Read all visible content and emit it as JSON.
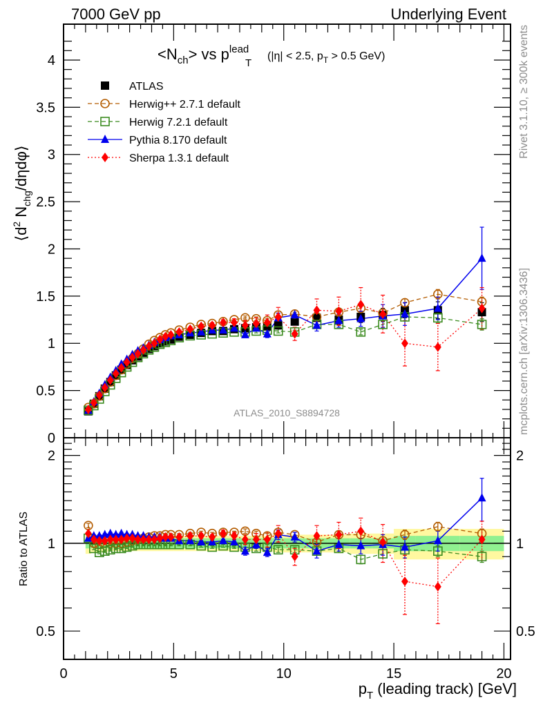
{
  "header": {
    "left": "7000 GeV pp",
    "right": "Underlying Event"
  },
  "side_labels": {
    "rivet": "Rivet 3.1.10, ≥ 300k events",
    "mcplots": "mcplots.cern.ch [arXiv:1306.3436]"
  },
  "chart_data": [
    {
      "type": "scatter",
      "panel": "main",
      "title": "<N_ch> vs p_T^lead (|η| < 2.5, p_T > 0.5 GeV)",
      "title_parts": {
        "n": "<N",
        "n_sub": "ch",
        "vs": "> vs p",
        "p_sup": "lead",
        "p_sub": "T",
        "cuts_a": "(|η| < 2.5, p",
        "cuts_sub": "T",
        "cuts_b": " > 0.5 GeV)"
      },
      "ylabel": "⟨d² N_chg/dηdφ⟩",
      "ylabel_parts": {
        "a": "⟨d",
        "sup": "2",
        "b": " N",
        "sub": "chg",
        "c": "/dηdφ⟩"
      },
      "xlabel": "p_T (leading track) [GeV]",
      "analysis_tag": "ATLAS_2010_S8894728",
      "xlim": [
        0,
        20.3
      ],
      "ylim": [
        0,
        4.38
      ],
      "yticks": [
        0,
        0.5,
        1,
        1.5,
        2,
        2.5,
        3,
        3.5,
        4
      ],
      "ytick_labels": [
        "0",
        "0.5",
        "1",
        "1.5",
        "2",
        "2.5",
        "3",
        "3.5",
        "4"
      ],
      "legend_position": "top-left",
      "x": [
        1.125,
        1.375,
        1.625,
        1.875,
        2.125,
        2.375,
        2.625,
        2.875,
        3.125,
        3.375,
        3.625,
        3.875,
        4.125,
        4.375,
        4.625,
        4.875,
        5.25,
        5.75,
        6.25,
        6.75,
        7.25,
        7.75,
        8.25,
        8.75,
        9.25,
        9.75,
        10.5,
        11.5,
        12.5,
        13.5,
        14.5,
        15.5,
        17.0,
        19.0
      ],
      "series": [
        {
          "name": "ATLAS",
          "color": "#000000",
          "marker": "square-filled",
          "line": "none",
          "values": [
            0.28,
            0.36,
            0.44,
            0.52,
            0.59,
            0.66,
            0.72,
            0.77,
            0.82,
            0.86,
            0.9,
            0.94,
            0.97,
            1.0,
            1.02,
            1.04,
            1.07,
            1.09,
            1.11,
            1.13,
            1.13,
            1.15,
            1.16,
            1.17,
            1.18,
            1.19,
            1.23,
            1.27,
            1.25,
            1.28,
            1.3,
            1.35,
            1.35,
            1.33
          ],
          "errors": [
            0.01,
            0.01,
            0.01,
            0.01,
            0.01,
            0.01,
            0.01,
            0.01,
            0.01,
            0.01,
            0.01,
            0.01,
            0.01,
            0.01,
            0.01,
            0.01,
            0.01,
            0.01,
            0.01,
            0.01,
            0.01,
            0.02,
            0.02,
            0.02,
            0.02,
            0.03,
            0.03,
            0.04,
            0.05,
            0.06,
            0.07,
            0.08,
            0.09,
            0.1
          ]
        },
        {
          "name": "Herwig++ 2.7.1 default",
          "color": "#b35c00",
          "marker": "circle-open",
          "line": "dashed",
          "values": [
            0.32,
            0.36,
            0.44,
            0.52,
            0.59,
            0.66,
            0.72,
            0.78,
            0.84,
            0.89,
            0.94,
            0.99,
            1.03,
            1.06,
            1.09,
            1.11,
            1.14,
            1.17,
            1.2,
            1.21,
            1.23,
            1.25,
            1.27,
            1.26,
            1.24,
            1.3,
            1.31,
            1.28,
            1.33,
            1.37,
            1.32,
            1.43,
            1.52,
            1.44
          ],
          "errors": [
            0.01,
            0.01,
            0.01,
            0.01,
            0.01,
            0.01,
            0.01,
            0.01,
            0.01,
            0.01,
            0.01,
            0.01,
            0.01,
            0.01,
            0.01,
            0.01,
            0.01,
            0.01,
            0.01,
            0.01,
            0.01,
            0.01,
            0.02,
            0.02,
            0.02,
            0.02,
            0.02,
            0.03,
            0.03,
            0.03,
            0.04,
            0.04,
            0.05,
            0.05
          ]
        },
        {
          "name": "Herwig 7.2.1 default",
          "color": "#3a8a1e",
          "marker": "square-open",
          "line": "dashed",
          "values": [
            0.29,
            0.34,
            0.41,
            0.49,
            0.56,
            0.63,
            0.69,
            0.75,
            0.8,
            0.85,
            0.89,
            0.93,
            0.96,
            0.99,
            1.01,
            1.03,
            1.06,
            1.08,
            1.09,
            1.1,
            1.11,
            1.12,
            1.12,
            1.13,
            1.14,
            1.13,
            1.12,
            1.2,
            1.2,
            1.12,
            1.2,
            1.28,
            1.27,
            1.2
          ],
          "errors": [
            0.01,
            0.01,
            0.01,
            0.01,
            0.01,
            0.01,
            0.01,
            0.01,
            0.01,
            0.01,
            0.01,
            0.01,
            0.01,
            0.01,
            0.01,
            0.01,
            0.01,
            0.01,
            0.01,
            0.01,
            0.01,
            0.01,
            0.02,
            0.02,
            0.02,
            0.02,
            0.02,
            0.03,
            0.03,
            0.03,
            0.04,
            0.04,
            0.05,
            0.06
          ]
        },
        {
          "name": "Pythia 8.170 default",
          "color": "#0000ee",
          "marker": "triangle-filled",
          "line": "solid",
          "values": [
            0.29,
            0.38,
            0.47,
            0.56,
            0.64,
            0.71,
            0.78,
            0.83,
            0.88,
            0.92,
            0.95,
            0.98,
            1.01,
            1.04,
            1.06,
            1.08,
            1.09,
            1.11,
            1.12,
            1.14,
            1.14,
            1.16,
            1.09,
            1.16,
            1.1,
            1.27,
            1.3,
            1.19,
            1.24,
            1.26,
            1.29,
            1.31,
            1.37,
            1.9
          ],
          "errors": [
            0.01,
            0.01,
            0.01,
            0.01,
            0.01,
            0.01,
            0.01,
            0.01,
            0.01,
            0.01,
            0.01,
            0.01,
            0.01,
            0.01,
            0.01,
            0.01,
            0.01,
            0.01,
            0.01,
            0.01,
            0.02,
            0.02,
            0.03,
            0.03,
            0.04,
            0.05,
            0.05,
            0.06,
            0.07,
            0.08,
            0.12,
            0.12,
            0.12,
            0.33
          ]
        },
        {
          "name": "Sherpa 1.3.1 default",
          "color": "#ff0000",
          "marker": "diamond-filled",
          "line": "dotted",
          "values": [
            0.3,
            0.37,
            0.45,
            0.53,
            0.61,
            0.68,
            0.74,
            0.8,
            0.85,
            0.89,
            0.93,
            0.97,
            1.0,
            1.04,
            1.07,
            1.09,
            1.12,
            1.15,
            1.18,
            1.19,
            1.22,
            1.22,
            1.19,
            1.21,
            1.22,
            1.28,
            1.1,
            1.35,
            1.34,
            1.41,
            1.31,
            1.0,
            0.96,
            1.37
          ],
          "errors": [
            0.01,
            0.01,
            0.01,
            0.01,
            0.01,
            0.01,
            0.01,
            0.01,
            0.01,
            0.01,
            0.01,
            0.01,
            0.01,
            0.01,
            0.01,
            0.01,
            0.02,
            0.02,
            0.02,
            0.03,
            0.03,
            0.04,
            0.05,
            0.06,
            0.08,
            0.1,
            0.07,
            0.12,
            0.15,
            0.18,
            0.2,
            0.24,
            0.25,
            0.22
          ]
        }
      ]
    },
    {
      "type": "scatter",
      "panel": "ratio",
      "ylabel": "Ratio to ATLAS",
      "xlabel": "p_T (leading track) [GeV]",
      "xlabel_parts": {
        "a": "p",
        "sub": "T",
        "b": " (leading track) [GeV]"
      },
      "yscale": "log",
      "ylim": [
        0.4,
        2.3
      ],
      "yticks": [
        0.5,
        1,
        2
      ],
      "ytick_labels": [
        "0.5",
        "1",
        "2"
      ],
      "xticks": [
        0,
        5,
        10,
        15,
        20
      ],
      "xtick_labels": [
        "0",
        "5",
        "10",
        "15",
        "20"
      ],
      "bands": {
        "stat_color": "#90f090",
        "total_color": "#fff8a0",
        "x_edges": [
          1.0,
          1.25,
          1.5,
          1.75,
          2.0,
          2.25,
          2.5,
          2.75,
          3.0,
          3.25,
          3.5,
          3.75,
          4.0,
          4.25,
          4.5,
          4.75,
          5.0,
          5.5,
          6.0,
          6.5,
          7.0,
          7.5,
          8.0,
          8.5,
          9.0,
          9.5,
          10.0,
          11.0,
          12.0,
          13.0,
          14.0,
          15.0,
          16.0,
          18.0,
          20.0
        ],
        "stat_halfwidth": [
          0.04,
          0.04,
          0.04,
          0.04,
          0.04,
          0.04,
          0.04,
          0.04,
          0.04,
          0.04,
          0.04,
          0.04,
          0.04,
          0.04,
          0.04,
          0.04,
          0.04,
          0.04,
          0.04,
          0.04,
          0.04,
          0.04,
          0.04,
          0.04,
          0.04,
          0.04,
          0.04,
          0.04,
          0.04,
          0.04,
          0.04,
          0.06,
          0.06,
          0.06
        ],
        "total_halfwidth": [
          0.08,
          0.07,
          0.07,
          0.07,
          0.06,
          0.06,
          0.06,
          0.06,
          0.06,
          0.06,
          0.06,
          0.06,
          0.06,
          0.06,
          0.06,
          0.06,
          0.06,
          0.06,
          0.06,
          0.06,
          0.06,
          0.06,
          0.06,
          0.06,
          0.06,
          0.07,
          0.07,
          0.07,
          0.07,
          0.08,
          0.08,
          0.12,
          0.12,
          0.12
        ]
      },
      "x": [
        1.125,
        1.375,
        1.625,
        1.875,
        2.125,
        2.375,
        2.625,
        2.875,
        3.125,
        3.375,
        3.625,
        3.875,
        4.125,
        4.375,
        4.625,
        4.875,
        5.25,
        5.75,
        6.25,
        6.75,
        7.25,
        7.75,
        8.25,
        8.75,
        9.25,
        9.75,
        10.5,
        11.5,
        12.5,
        13.5,
        14.5,
        15.5,
        17.0,
        19.0
      ],
      "series": [
        {
          "name": "Herwig++ 2.7.1 default",
          "color": "#b35c00",
          "marker": "circle-open",
          "line": "dashed",
          "values": [
            1.15,
            1.0,
            0.99,
            1.0,
            1.0,
            1.0,
            1.0,
            1.01,
            1.02,
            1.03,
            1.04,
            1.05,
            1.06,
            1.06,
            1.07,
            1.07,
            1.07,
            1.08,
            1.09,
            1.08,
            1.09,
            1.09,
            1.1,
            1.08,
            1.06,
            1.09,
            1.07,
            1.01,
            1.07,
            1.07,
            1.02,
            1.07,
            1.14,
            1.08
          ],
          "errors": [
            0.02,
            0.01,
            0.01,
            0.01,
            0.01,
            0.01,
            0.01,
            0.01,
            0.01,
            0.01,
            0.01,
            0.01,
            0.01,
            0.01,
            0.01,
            0.01,
            0.01,
            0.01,
            0.01,
            0.01,
            0.01,
            0.01,
            0.02,
            0.02,
            0.02,
            0.02,
            0.02,
            0.02,
            0.03,
            0.03,
            0.03,
            0.04,
            0.04,
            0.04
          ]
        },
        {
          "name": "Herwig 7.2.1 default",
          "color": "#3a8a1e",
          "marker": "square-open",
          "line": "dashed",
          "values": [
            1.04,
            0.96,
            0.93,
            0.94,
            0.95,
            0.96,
            0.96,
            0.97,
            0.98,
            0.99,
            0.99,
            0.99,
            0.99,
            0.99,
            0.99,
            0.99,
            0.99,
            0.99,
            0.98,
            0.97,
            0.98,
            0.97,
            0.97,
            0.96,
            0.97,
            0.95,
            0.95,
            0.94,
            0.96,
            0.88,
            0.92,
            0.95,
            0.94,
            0.9
          ],
          "errors": [
            0.01,
            0.01,
            0.01,
            0.01,
            0.01,
            0.01,
            0.01,
            0.01,
            0.01,
            0.01,
            0.01,
            0.01,
            0.01,
            0.01,
            0.01,
            0.01,
            0.01,
            0.01,
            0.01,
            0.01,
            0.01,
            0.01,
            0.02,
            0.02,
            0.02,
            0.02,
            0.02,
            0.02,
            0.03,
            0.03,
            0.03,
            0.04,
            0.04,
            0.04
          ]
        },
        {
          "name": "Pythia 8.170 default",
          "color": "#0000ee",
          "marker": "triangle-filled",
          "line": "solid",
          "values": [
            1.04,
            1.06,
            1.06,
            1.07,
            1.08,
            1.07,
            1.08,
            1.07,
            1.07,
            1.06,
            1.06,
            1.05,
            1.05,
            1.05,
            1.04,
            1.04,
            1.02,
            1.02,
            1.01,
            1.01,
            1.02,
            1.01,
            0.94,
            0.99,
            0.93,
            1.07,
            1.05,
            0.94,
            0.99,
            0.98,
            0.99,
            0.97,
            1.02,
            1.43
          ],
          "errors": [
            0.01,
            0.01,
            0.01,
            0.01,
            0.01,
            0.01,
            0.01,
            0.01,
            0.01,
            0.01,
            0.01,
            0.01,
            0.01,
            0.01,
            0.01,
            0.01,
            0.01,
            0.01,
            0.01,
            0.01,
            0.01,
            0.02,
            0.03,
            0.03,
            0.03,
            0.04,
            0.04,
            0.05,
            0.05,
            0.06,
            0.08,
            0.08,
            0.08,
            0.24
          ]
        },
        {
          "name": "Sherpa 1.3.1 default",
          "color": "#ff0000",
          "marker": "diamond-filled",
          "line": "dotted",
          "values": [
            1.08,
            1.03,
            1.02,
            1.02,
            1.03,
            1.03,
            1.03,
            1.04,
            1.04,
            1.03,
            1.03,
            1.03,
            1.03,
            1.04,
            1.05,
            1.05,
            1.05,
            1.06,
            1.06,
            1.05,
            1.08,
            1.06,
            1.03,
            1.03,
            1.03,
            1.08,
            0.9,
            1.06,
            1.07,
            1.1,
            1.01,
            0.74,
            0.71,
            1.03
          ],
          "errors": [
            0.01,
            0.01,
            0.01,
            0.01,
            0.01,
            0.01,
            0.01,
            0.01,
            0.01,
            0.01,
            0.01,
            0.01,
            0.01,
            0.01,
            0.01,
            0.01,
            0.02,
            0.02,
            0.02,
            0.02,
            0.03,
            0.03,
            0.04,
            0.05,
            0.06,
            0.07,
            0.06,
            0.09,
            0.11,
            0.12,
            0.15,
            0.17,
            0.18,
            0.16
          ]
        }
      ]
    }
  ]
}
